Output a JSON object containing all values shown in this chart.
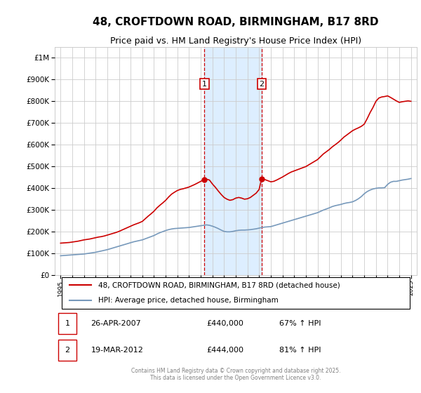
{
  "title": "48, CROFTDOWN ROAD, BIRMINGHAM, B17 8RD",
  "subtitle": "Price paid vs. HM Land Registry's House Price Index (HPI)",
  "legend_label_red": "48, CROFTDOWN ROAD, BIRMINGHAM, B17 8RD (detached house)",
  "legend_label_blue": "HPI: Average price, detached house, Birmingham",
  "footer": "Contains HM Land Registry data © Crown copyright and database right 2025.\nThis data is licensed under the Open Government Licence v3.0.",
  "ann1_label": "1",
  "ann1_date": "26-APR-2007",
  "ann1_price": "£440,000",
  "ann1_hpi": "67% ↑ HPI",
  "ann2_label": "2",
  "ann2_date": "19-MAR-2012",
  "ann2_price": "£444,000",
  "ann2_hpi": "81% ↑ HPI",
  "sale1_x": 2007.32,
  "sale1_y": 440000,
  "sale2_x": 2012.22,
  "sale2_y": 444000,
  "shade_x1": 2007.32,
  "shade_x2": 2012.22,
  "ylim": [
    0,
    1050000
  ],
  "xlim": [
    1994.5,
    2025.5
  ],
  "red_color": "#cc0000",
  "blue_color": "#7799bb",
  "shade_color": "#ddeeff",
  "grid_color": "#cccccc",
  "background_color": "#ffffff",
  "hpi_red_x": [
    1995.0,
    1995.25,
    1995.5,
    1995.75,
    1996.0,
    1996.25,
    1996.5,
    1996.75,
    1997.0,
    1997.25,
    1997.5,
    1997.75,
    1998.0,
    1998.25,
    1998.5,
    1998.75,
    1999.0,
    1999.25,
    1999.5,
    1999.75,
    2000.0,
    2000.25,
    2000.5,
    2000.75,
    2001.0,
    2001.25,
    2001.5,
    2001.75,
    2002.0,
    2002.25,
    2002.5,
    2002.75,
    2003.0,
    2003.25,
    2003.5,
    2003.75,
    2004.0,
    2004.25,
    2004.5,
    2004.75,
    2005.0,
    2005.25,
    2005.5,
    2005.75,
    2006.0,
    2006.25,
    2006.5,
    2006.75,
    2007.0,
    2007.32,
    2007.5,
    2007.75,
    2008.0,
    2008.25,
    2008.5,
    2008.75,
    2009.0,
    2009.25,
    2009.5,
    2009.75,
    2010.0,
    2010.25,
    2010.5,
    2010.75,
    2011.0,
    2011.25,
    2011.5,
    2011.75,
    2012.0,
    2012.22,
    2012.5,
    2012.75,
    2013.0,
    2013.25,
    2013.5,
    2013.75,
    2014.0,
    2014.25,
    2014.5,
    2014.75,
    2015.0,
    2015.25,
    2015.5,
    2015.75,
    2016.0,
    2016.25,
    2016.5,
    2016.75,
    2017.0,
    2017.25,
    2017.5,
    2017.75,
    2018.0,
    2018.25,
    2018.5,
    2018.75,
    2019.0,
    2019.25,
    2019.5,
    2019.75,
    2020.0,
    2020.25,
    2020.5,
    2020.75,
    2021.0,
    2021.25,
    2021.5,
    2021.75,
    2022.0,
    2022.25,
    2022.5,
    2022.75,
    2023.0,
    2023.25,
    2023.5,
    2023.75,
    2024.0,
    2024.25,
    2024.5,
    2024.75,
    2025.0
  ],
  "hpi_red_y": [
    148000,
    149000,
    150000,
    151000,
    153000,
    155000,
    157000,
    160000,
    163000,
    165000,
    167000,
    170000,
    173000,
    176000,
    178000,
    181000,
    185000,
    189000,
    193000,
    197000,
    202000,
    208000,
    214000,
    220000,
    226000,
    232000,
    237000,
    242000,
    248000,
    260000,
    272000,
    283000,
    295000,
    310000,
    322000,
    333000,
    345000,
    360000,
    373000,
    382000,
    390000,
    395000,
    398000,
    402000,
    406000,
    412000,
    418000,
    425000,
    432000,
    440000,
    442000,
    438000,
    420000,
    405000,
    388000,
    372000,
    358000,
    350000,
    345000,
    348000,
    355000,
    358000,
    355000,
    350000,
    352000,
    358000,
    368000,
    378000,
    395000,
    444000,
    440000,
    435000,
    430000,
    432000,
    438000,
    445000,
    452000,
    460000,
    468000,
    475000,
    480000,
    485000,
    490000,
    495000,
    500000,
    508000,
    516000,
    524000,
    532000,
    545000,
    558000,
    568000,
    578000,
    590000,
    600000,
    610000,
    622000,
    635000,
    645000,
    655000,
    665000,
    672000,
    678000,
    685000,
    695000,
    720000,
    748000,
    772000,
    800000,
    815000,
    820000,
    822000,
    825000,
    818000,
    810000,
    802000,
    795000,
    798000,
    800000,
    802000,
    800000
  ],
  "hpi_blue_x": [
    1995.0,
    1995.25,
    1995.5,
    1995.75,
    1996.0,
    1996.25,
    1996.5,
    1996.75,
    1997.0,
    1997.25,
    1997.5,
    1997.75,
    1998.0,
    1998.25,
    1998.5,
    1998.75,
    1999.0,
    1999.25,
    1999.5,
    1999.75,
    2000.0,
    2000.25,
    2000.5,
    2000.75,
    2001.0,
    2001.25,
    2001.5,
    2001.75,
    2002.0,
    2002.25,
    2002.5,
    2002.75,
    2003.0,
    2003.25,
    2003.5,
    2003.75,
    2004.0,
    2004.25,
    2004.5,
    2004.75,
    2005.0,
    2005.25,
    2005.5,
    2005.75,
    2006.0,
    2006.25,
    2006.5,
    2006.75,
    2007.0,
    2007.25,
    2007.5,
    2007.75,
    2008.0,
    2008.25,
    2008.5,
    2008.75,
    2009.0,
    2009.25,
    2009.5,
    2009.75,
    2010.0,
    2010.25,
    2010.5,
    2010.75,
    2011.0,
    2011.25,
    2011.5,
    2011.75,
    2012.0,
    2012.25,
    2012.5,
    2012.75,
    2013.0,
    2013.25,
    2013.5,
    2013.75,
    2014.0,
    2014.25,
    2014.5,
    2014.75,
    2015.0,
    2015.25,
    2015.5,
    2015.75,
    2016.0,
    2016.25,
    2016.5,
    2016.75,
    2017.0,
    2017.25,
    2017.5,
    2017.75,
    2018.0,
    2018.25,
    2018.5,
    2018.75,
    2019.0,
    2019.25,
    2019.5,
    2019.75,
    2020.0,
    2020.25,
    2020.5,
    2020.75,
    2021.0,
    2021.25,
    2021.5,
    2021.75,
    2022.0,
    2022.25,
    2022.5,
    2022.75,
    2023.0,
    2023.25,
    2023.5,
    2023.75,
    2024.0,
    2024.25,
    2024.5,
    2024.75,
    2025.0
  ],
  "hpi_blue_y": [
    90000,
    91000,
    92000,
    93000,
    94000,
    95000,
    96000,
    97000,
    98000,
    100000,
    102000,
    104000,
    106000,
    109000,
    112000,
    115000,
    118000,
    122000,
    126000,
    130000,
    134000,
    138000,
    142000,
    146000,
    150000,
    154000,
    157000,
    160000,
    163000,
    168000,
    173000,
    178000,
    183000,
    190000,
    196000,
    201000,
    206000,
    210000,
    213000,
    215000,
    216000,
    217000,
    218000,
    219000,
    220000,
    222000,
    224000,
    226000,
    228000,
    230000,
    232000,
    230000,
    226000,
    221000,
    215000,
    208000,
    202000,
    200000,
    200000,
    202000,
    205000,
    207000,
    208000,
    208000,
    209000,
    210000,
    212000,
    214000,
    217000,
    220000,
    222000,
    223000,
    224000,
    228000,
    232000,
    236000,
    240000,
    244000,
    248000,
    252000,
    256000,
    260000,
    264000,
    268000,
    272000,
    276000,
    280000,
    284000,
    288000,
    294000,
    300000,
    305000,
    310000,
    316000,
    320000,
    323000,
    326000,
    330000,
    333000,
    335000,
    338000,
    344000,
    352000,
    362000,
    375000,
    385000,
    392000,
    397000,
    400000,
    402000,
    402000,
    403000,
    418000,
    428000,
    432000,
    432000,
    435000,
    438000,
    440000,
    442000,
    445000
  ]
}
